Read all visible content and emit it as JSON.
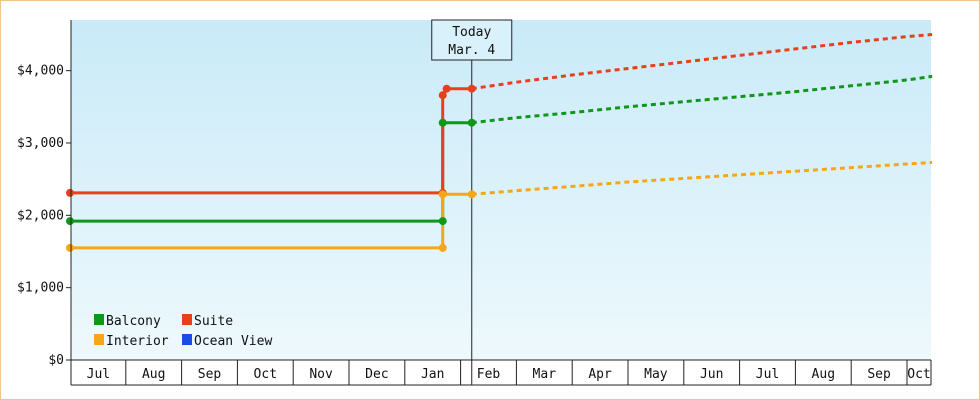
{
  "chart_data": {
    "type": "line",
    "title": "",
    "xlabel": "",
    "ylabel": "",
    "ylim": [
      0,
      4700
    ],
    "yticks": [
      0,
      1000,
      2000,
      3000,
      4000
    ],
    "ytick_labels": [
      "$0",
      "$1,000",
      "$2,000",
      "$3,000",
      "$4,000"
    ],
    "xtick_labels": [
      "Jul",
      "Aug",
      "Sep",
      "Oct",
      "Nov",
      "Dec",
      "Jan",
      "Feb",
      "Mar",
      "Apr",
      "May",
      "Jun",
      "Jul",
      "Aug",
      "Sep",
      "Oct"
    ],
    "today_marker": {
      "line1": "Today",
      "line2": "Mar. 4",
      "x": 7.2
    },
    "grid": false,
    "legend": {
      "placement": "bottom-left"
    },
    "series": [
      {
        "name": "Balcony",
        "color": "#109618",
        "historical": [
          [
            0,
            1920
          ],
          [
            6.68,
            1920
          ],
          [
            6.68,
            3280
          ],
          [
            7.2,
            3280
          ]
        ],
        "historical_points": [
          [
            0,
            1920
          ],
          [
            6.68,
            1920
          ],
          [
            6.68,
            3280
          ],
          [
            7.2,
            3280
          ]
        ],
        "forecast": [
          [
            7.2,
            3280
          ],
          [
            8,
            3350
          ],
          [
            9,
            3420
          ],
          [
            10,
            3500
          ],
          [
            11,
            3570
          ],
          [
            12,
            3640
          ],
          [
            13,
            3710
          ],
          [
            14,
            3790
          ],
          [
            15,
            3870
          ],
          [
            15.45,
            3920
          ]
        ]
      },
      {
        "name": "Suite",
        "color": "#e8401c",
        "historical": [
          [
            0,
            2310
          ],
          [
            6.68,
            2310
          ],
          [
            6.68,
            3660
          ],
          [
            6.75,
            3750
          ],
          [
            7.2,
            3750
          ]
        ],
        "historical_points": [
          [
            0,
            2310
          ],
          [
            6.68,
            2310
          ],
          [
            6.68,
            3660
          ],
          [
            6.75,
            3750
          ],
          [
            7.2,
            3750
          ]
        ],
        "forecast": [
          [
            7.2,
            3750
          ],
          [
            8,
            3840
          ],
          [
            9,
            3940
          ],
          [
            10,
            4030
          ],
          [
            11,
            4120
          ],
          [
            12,
            4210
          ],
          [
            13,
            4300
          ],
          [
            14,
            4390
          ],
          [
            15,
            4470
          ],
          [
            15.45,
            4500
          ]
        ]
      },
      {
        "name": "Interior",
        "color": "#f7a618",
        "historical": [
          [
            0,
            1550
          ],
          [
            6.68,
            1550
          ],
          [
            6.68,
            2290
          ],
          [
            7.2,
            2290
          ]
        ],
        "historical_points": [
          [
            0,
            1550
          ],
          [
            6.68,
            1550
          ],
          [
            6.68,
            2290
          ],
          [
            7.2,
            2290
          ]
        ],
        "forecast": [
          [
            7.2,
            2290
          ],
          [
            8,
            2340
          ],
          [
            9,
            2400
          ],
          [
            10,
            2460
          ],
          [
            11,
            2510
          ],
          [
            12,
            2560
          ],
          [
            13,
            2610
          ],
          [
            14,
            2660
          ],
          [
            15,
            2710
          ],
          [
            15.45,
            2730
          ]
        ]
      },
      {
        "name": "Ocean View",
        "color": "#1c4ce8",
        "historical": [],
        "historical_points": [],
        "forecast": []
      }
    ],
    "legend_order": [
      "Balcony",
      "Suite",
      "Interior",
      "Ocean View"
    ]
  }
}
